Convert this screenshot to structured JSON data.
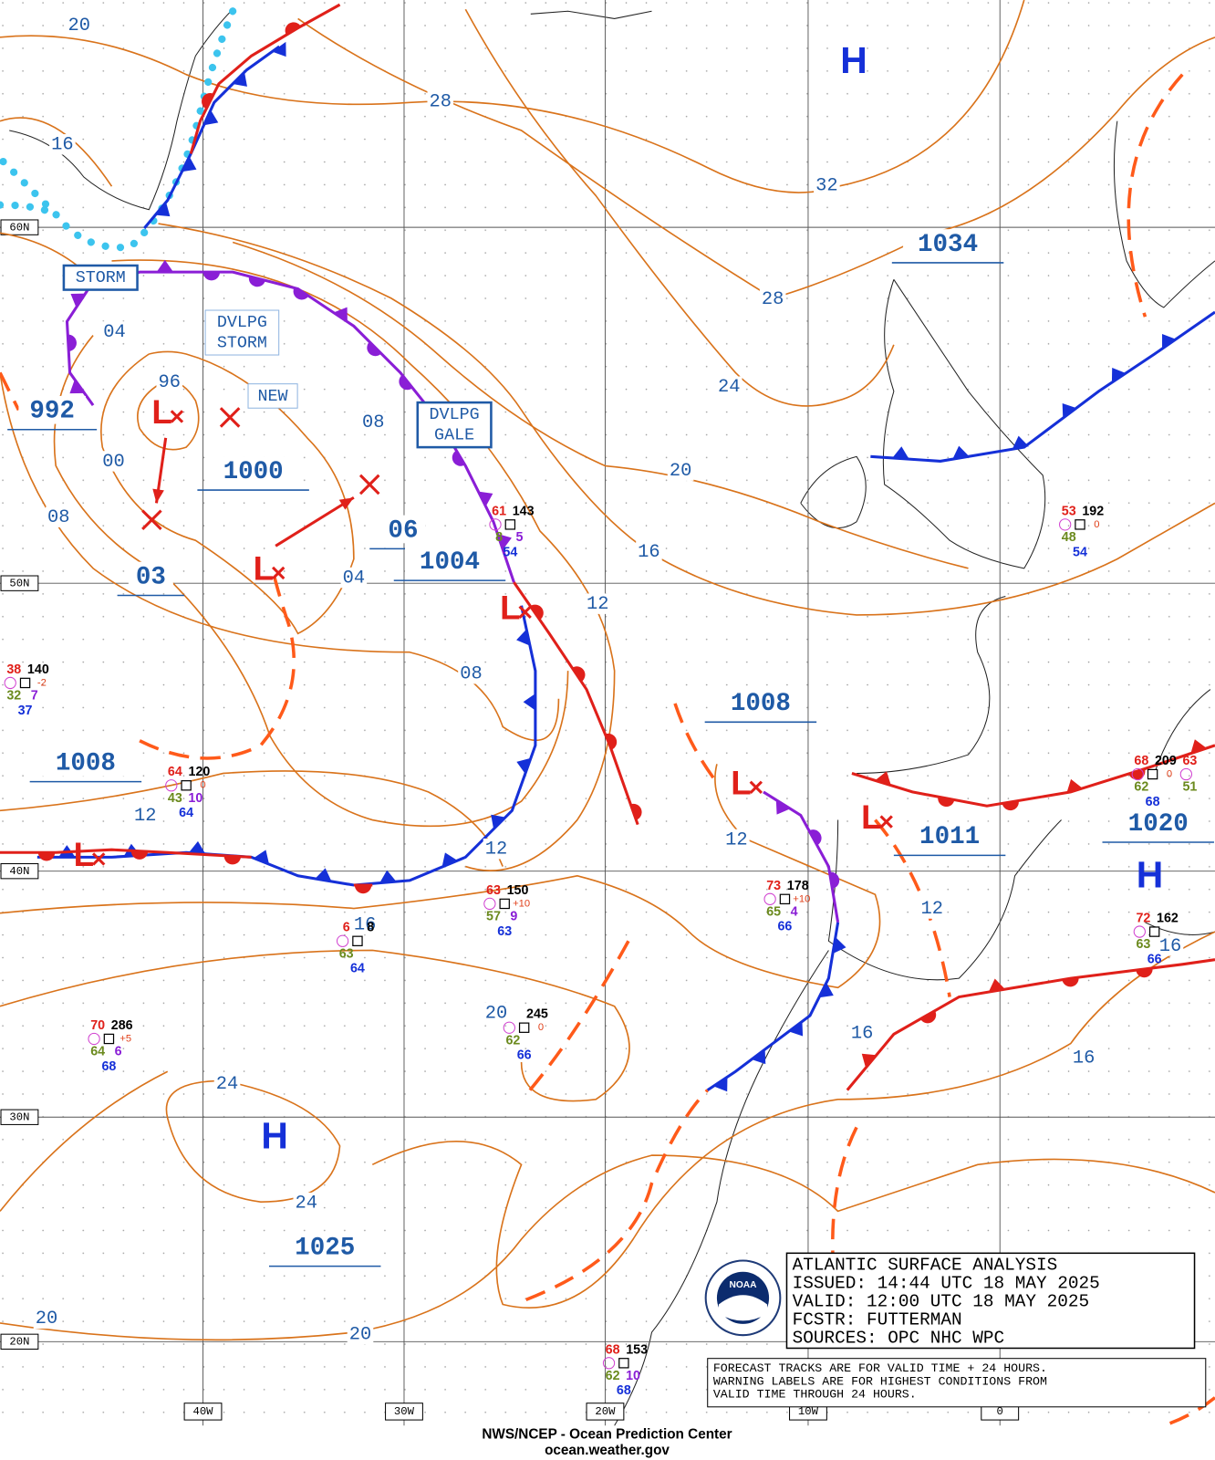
{
  "grid_labels": {
    "latitudes": [
      "60N",
      "50N",
      "40N",
      "30N",
      "20N"
    ],
    "longitudes": [
      "40W",
      "30W",
      "20W",
      "10W",
      "0"
    ]
  },
  "isobar_labels": [
    "20",
    "16",
    "28",
    "32",
    "28",
    "24",
    "20",
    "16",
    "12",
    "04",
    "96",
    "00",
    "08",
    "08",
    "04",
    "08",
    "12",
    "12",
    "12",
    "12",
    "16",
    "20",
    "16",
    "16",
    "16",
    "24",
    "24",
    "20",
    "20"
  ],
  "pressure_labels": [
    "992",
    "1000",
    "06",
    "1004",
    "03",
    "1008",
    "1008",
    "1034",
    "1011",
    "1020",
    "1025"
  ],
  "high_centers": [
    "H",
    "H",
    "H"
  ],
  "low_centers": [
    "L",
    "L",
    "L",
    "L",
    "L",
    "L"
  ],
  "warnings": [
    [
      "STORM"
    ],
    [
      "DVLPG",
      "STORM"
    ],
    [
      "DVLPG",
      "GALE"
    ],
    [
      "NEW"
    ]
  ],
  "stations": [
    {
      "temp": "61",
      "pressure": "143",
      "dew": "8",
      "visibility": "5",
      "wave": "54"
    },
    {
      "temp": "53",
      "pressure": "192",
      "tendency": "0",
      "dew": "48",
      "wave": "54"
    },
    {
      "temp": "38",
      "pressure": "140",
      "tendency": "-2",
      "dew": "32",
      "visibility": "7",
      "wave": "37"
    },
    {
      "temp": "64",
      "pressure": "120",
      "tendency": "0",
      "dew": "43",
      "visibility": "10",
      "wave": "64"
    },
    {
      "temp": "63",
      "pressure": "150",
      "tendency": "+10",
      "dew": "57",
      "visibility": "9",
      "wave": "63"
    },
    {
      "temp": "6",
      "pressure": "8",
      "dew": "63",
      "wave": "64"
    },
    {
      "temp": "70",
      "pressure": "286",
      "tendency": "+5",
      "dew": "64",
      "visibility": "6",
      "wave": "68"
    },
    {
      "pressure": "245",
      "tendency": "0",
      "dew": "62",
      "wave": "66"
    },
    {
      "temp": "73",
      "pressure": "178",
      "tendency": "+10",
      "dew": "65",
      "visibility": "4",
      "wave": "66"
    },
    {
      "temp": "68",
      "pressure": "209",
      "tendency": "0",
      "dew": "62",
      "wave": "68"
    },
    {
      "temp": "72",
      "pressure": "162",
      "dew": "63",
      "wave": "66"
    },
    {
      "temp": "68",
      "pressure": "153",
      "dew": "62",
      "visibility": "10",
      "wave": "68"
    },
    {
      "temp": "63",
      "dew": "51"
    }
  ],
  "info_box": [
    "ATLANTIC SURFACE ANALYSIS",
    "ISSUED:  14:44 UTC 18 MAY 2025",
    "VALID:   12:00 UTC 18 MAY 2025",
    "FCSTR:   FUTTERMAN",
    "SOURCES:  OPC NHC WPC"
  ],
  "note": [
    "FORECAST TRACKS ARE FOR VALID TIME + 24 HOURS.",
    "WARNING LABELS ARE FOR HIGHEST CONDITIONS FROM",
    "VALID TIME THROUGH 24 HOURS."
  ],
  "logo": "NOAA",
  "footer": [
    "NWS/NCEP - Ocean Prediction Center",
    "ocean.weather.gov"
  ]
}
